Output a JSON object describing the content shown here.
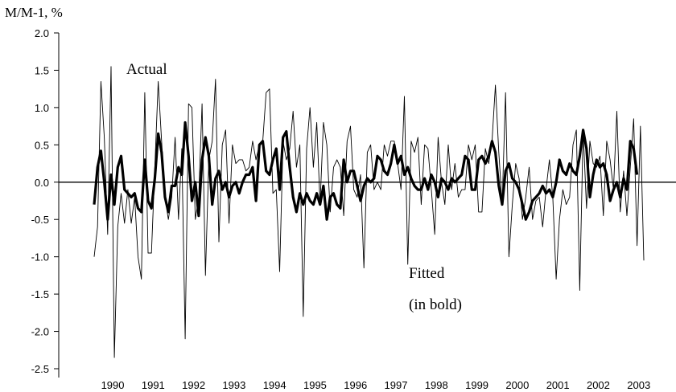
{
  "chart_data": {
    "type": "line",
    "title": "",
    "ylabel": "M/M-1, %",
    "xlabel": "",
    "ylim": [
      -2.5,
      2.0
    ],
    "yticks": [
      2.0,
      1.5,
      1.0,
      0.5,
      0.0,
      -0.5,
      -1.0,
      -1.5,
      -2.0,
      -2.5
    ],
    "ytick_labels": [
      "2.0",
      "1.5",
      "1.0",
      "0.5",
      "0.0",
      "-0.5",
      "-1.0",
      "-1.5",
      "-2.0",
      "-2.5"
    ],
    "x_start": "1990-01",
    "frequency": "monthly",
    "year_labels": [
      "1990",
      "1991",
      "1992",
      "1993",
      "1994",
      "1995",
      "1996",
      "1997",
      "1998",
      "1999",
      "2000",
      "2001",
      "2002",
      "2003"
    ],
    "zero_line": true,
    "grid": false,
    "annotations": [
      {
        "text": "Actual"
      },
      {
        "text": "Fitted"
      },
      {
        "text": "(in bold)"
      }
    ],
    "series": [
      {
        "name": "Actual",
        "style": "thin",
        "color": "#000000",
        "values": [
          -1.0,
          -0.6,
          1.35,
          0.6,
          -0.7,
          1.55,
          -2.35,
          -0.6,
          -0.15,
          -0.55,
          -0.1,
          -0.55,
          -0.2,
          -1.0,
          -1.3,
          1.2,
          -0.95,
          -0.95,
          0.2,
          1.35,
          0.55,
          -0.2,
          -0.5,
          -0.2,
          0.6,
          -0.5,
          0.45,
          -2.1,
          1.05,
          1.0,
          -0.5,
          -0.2,
          1.05,
          -1.25,
          0.3,
          0.55,
          1.38,
          -0.8,
          0.5,
          0.7,
          -0.55,
          0.5,
          0.25,
          0.3,
          0.3,
          0.15,
          0.2,
          0.55,
          0.3,
          0.5,
          0.55,
          1.2,
          1.25,
          -0.15,
          -0.1,
          -1.2,
          0.55,
          0.3,
          0.45,
          0.95,
          0.2,
          0.5,
          -1.8,
          0.45,
          1.0,
          0.2,
          0.8,
          -0.3,
          0.8,
          0.5,
          -0.4,
          0.2,
          0.3,
          0.2,
          -0.45,
          0.55,
          0.75,
          -0.1,
          -0.2,
          0.1,
          -1.15,
          0.4,
          0.5,
          -0.1,
          0.0,
          -0.1,
          0.5,
          0.35,
          0.55,
          0.55,
          0.25,
          -0.1,
          1.15,
          -1.1,
          0.55,
          0.4,
          0.6,
          -0.3,
          0.5,
          0.45,
          -0.1,
          -0.7,
          0.6,
          0.0,
          -0.3,
          0.5,
          -0.1,
          0.25,
          -0.2,
          -0.1,
          -0.1,
          0.5,
          0.3,
          0.5,
          -0.4,
          -0.4,
          0.45,
          0.25,
          0.55,
          1.3,
          0.4,
          -0.3,
          1.2,
          -1.0,
          -0.3,
          0.25,
          0.05,
          -0.5,
          -0.2,
          0.2,
          -0.5,
          -0.25,
          -0.2,
          -0.6,
          -0.1,
          0.3,
          -0.2,
          -1.3,
          -0.5,
          -0.1,
          -0.3,
          -0.2,
          0.5,
          0.7,
          -1.45,
          0.7,
          -0.35,
          0.55,
          0.25,
          0.2,
          0.35,
          -0.45,
          0.55,
          0.3,
          -0.1,
          0.95,
          -0.4,
          0.15,
          -0.45,
          0.2,
          0.85,
          -0.85,
          0.75,
          -1.05
        ]
      },
      {
        "name": "Fitted",
        "style": "bold",
        "color": "#000000",
        "values": [
          -0.3,
          0.2,
          0.42,
          0.0,
          -0.5,
          0.1,
          -0.3,
          0.2,
          0.35,
          -0.1,
          -0.15,
          -0.2,
          -0.15,
          -0.35,
          -0.4,
          0.3,
          -0.25,
          -0.35,
          0.05,
          0.65,
          0.4,
          -0.2,
          -0.4,
          -0.05,
          -0.05,
          0.2,
          0.1,
          0.8,
          0.35,
          -0.25,
          0.0,
          -0.45,
          0.3,
          0.6,
          0.35,
          -0.3,
          0.05,
          0.15,
          -0.1,
          0.0,
          -0.2,
          -0.05,
          0.0,
          -0.15,
          0.0,
          0.1,
          0.1,
          0.2,
          -0.25,
          0.5,
          0.55,
          0.15,
          0.1,
          0.3,
          0.45,
          -0.1,
          0.6,
          0.68,
          0.2,
          -0.2,
          -0.4,
          -0.15,
          -0.3,
          -0.15,
          -0.25,
          -0.3,
          -0.15,
          -0.3,
          -0.05,
          -0.5,
          -0.2,
          -0.15,
          -0.3,
          -0.35,
          0.3,
          0.0,
          0.15,
          0.15,
          -0.05,
          -0.25,
          -0.05,
          0.05,
          0.0,
          0.05,
          0.35,
          0.3,
          0.15,
          0.1,
          0.25,
          0.5,
          0.25,
          0.35,
          0.1,
          0.2,
          0.05,
          -0.05,
          -0.1,
          -0.1,
          0.05,
          -0.1,
          0.1,
          0.0,
          -0.2,
          0.05,
          0.0,
          -0.1,
          0.05,
          0.0,
          0.05,
          0.1,
          0.35,
          0.3,
          -0.1,
          -0.1,
          0.3,
          0.35,
          0.25,
          0.35,
          0.55,
          0.4,
          -0.05,
          -0.3,
          0.15,
          0.25,
          0.05,
          0.0,
          -0.1,
          -0.3,
          -0.5,
          -0.4,
          -0.25,
          -0.2,
          -0.15,
          -0.05,
          -0.15,
          -0.1,
          -0.2,
          0.0,
          0.3,
          0.15,
          0.1,
          0.25,
          0.15,
          0.1,
          0.35,
          0.7,
          0.45,
          -0.2,
          0.1,
          0.3,
          0.2,
          0.25,
          0.1,
          -0.25,
          -0.1,
          0.0,
          -0.2,
          0.05,
          -0.1,
          0.55,
          0.45,
          0.1
        ]
      }
    ]
  }
}
